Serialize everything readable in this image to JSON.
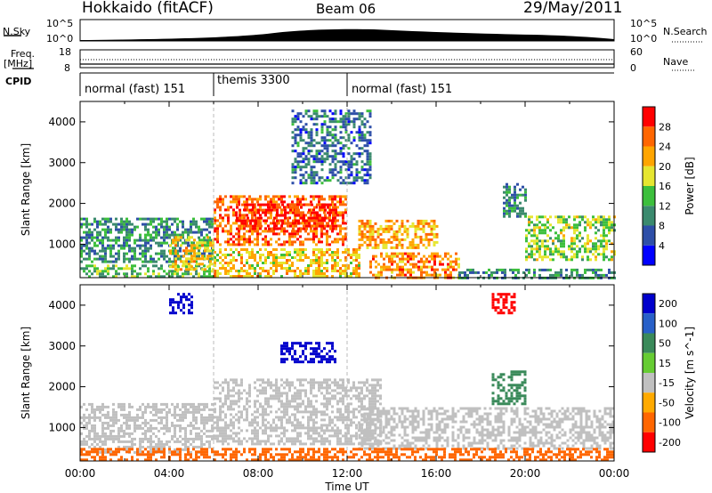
{
  "header": {
    "station": "Hokkaido (fitACF)",
    "beam": "Beam 06",
    "date": "29/May/2011"
  },
  "top_panel": {
    "left_label": "N.Sky",
    "right_label": "N.Search",
    "tick_high": "10^5",
    "tick_low": "10^0"
  },
  "freq_panel": {
    "left_label_1": "Freq.",
    "left_label_2": "[MHz]",
    "right_label": "Nave",
    "left_ticks": [
      "18",
      "8"
    ],
    "right_ticks": [
      "60",
      "0"
    ]
  },
  "cpid": {
    "label": "CPID",
    "segments": [
      {
        "name": "normal (fast) 151",
        "start_h": 0,
        "end_h": 6
      },
      {
        "name": "themis 3300",
        "start_h": 6,
        "end_h": 12
      },
      {
        "name": "normal (fast) 151",
        "start_h": 12,
        "end_h": 24
      }
    ]
  },
  "colors": {
    "power": [
      "#0000ff",
      "#2e4fa8",
      "#3b8a6e",
      "#3cbf3c",
      "#e6e630",
      "#ffa500",
      "#ff6600",
      "#ff0000"
    ],
    "velocity": [
      "#0000cc",
      "#2860c8",
      "#3a8a5a",
      "#66cc33",
      "#c0c0c0",
      "#ffaa00",
      "#ff6600",
      "#ff0000"
    ]
  },
  "chart_data": [
    {
      "type": "heatmap",
      "name": "power-panel",
      "xlabel": "",
      "ylabel": "Slant Range [km]",
      "xlim": [
        0,
        24
      ],
      "ylim": [
        180,
        4500
      ],
      "yticks": [
        "1000",
        "2000",
        "3000",
        "4000"
      ],
      "colorbar_label": "Power [dB]",
      "colorbar_ticks": [
        "4",
        "8",
        "12",
        "16",
        "20",
        "24",
        "28"
      ],
      "regions": [
        {
          "t0": 0.0,
          "t1": 6.0,
          "r0": 600,
          "r1": 1650,
          "v": 10
        },
        {
          "t0": 0.0,
          "t1": 6.0,
          "r0": 200,
          "r1": 500,
          "v": 14
        },
        {
          "t0": 4.0,
          "t1": 6.0,
          "r0": 400,
          "r1": 1200,
          "v": 20
        },
        {
          "t0": 6.0,
          "t1": 12.0,
          "r0": 1000,
          "r1": 2200,
          "v": 26
        },
        {
          "t0": 7.0,
          "t1": 11.5,
          "r0": 1400,
          "r1": 2000,
          "v": 29
        },
        {
          "t0": 6.0,
          "t1": 12.5,
          "r0": 200,
          "r1": 900,
          "v": 20
        },
        {
          "t0": 12.5,
          "t1": 16.0,
          "r0": 900,
          "r1": 1600,
          "v": 22
        },
        {
          "t0": 13.0,
          "t1": 17.0,
          "r0": 200,
          "r1": 800,
          "v": 24
        },
        {
          "t0": 19.0,
          "t1": 20.0,
          "r0": 1700,
          "r1": 2500,
          "v": 10
        },
        {
          "t0": 20.0,
          "t1": 24.0,
          "r0": 600,
          "r1": 1700,
          "v": 16
        },
        {
          "t0": 9.5,
          "t1": 13.0,
          "r0": 2500,
          "r1": 4300,
          "v": 8
        },
        {
          "t0": 17.0,
          "t1": 24.0,
          "r0": 180,
          "r1": 400,
          "v": 10
        }
      ]
    },
    {
      "type": "heatmap",
      "name": "velocity-panel",
      "xlabel": "Time UT",
      "ylabel": "Slant Range [km]",
      "xlim": [
        0,
        24
      ],
      "ylim": [
        180,
        4500
      ],
      "xticks": [
        "00:00",
        "04:00",
        "08:00",
        "12:00",
        "16:00",
        "20:00",
        "00:00"
      ],
      "yticks": [
        "1000",
        "2000",
        "3000",
        "4000"
      ],
      "colorbar_label": "Velocity [m s^-1]",
      "colorbar_ticks": [
        "200",
        "100",
        "50",
        "15",
        "-15",
        "-50",
        "-100",
        "-200"
      ],
      "regions": [
        {
          "t0": 6.0,
          "t1": 13.5,
          "r0": 600,
          "r1": 2200,
          "v": 0
        },
        {
          "t0": 9.0,
          "t1": 11.5,
          "r0": 2600,
          "r1": 3100,
          "v": 200
        },
        {
          "t0": 0.0,
          "t1": 6.0,
          "r0": 400,
          "r1": 1600,
          "v": 0
        },
        {
          "t0": 12.5,
          "t1": 24.0,
          "r0": 500,
          "r1": 1500,
          "v": 0
        },
        {
          "t0": 0.0,
          "t1": 24.0,
          "r0": 180,
          "r1": 500,
          "v": -60
        },
        {
          "t0": 18.5,
          "t1": 20.0,
          "r0": 1600,
          "r1": 2400,
          "v": 50
        },
        {
          "t0": 4.0,
          "t1": 5.0,
          "r0": 3800,
          "r1": 4300,
          "v": 200
        },
        {
          "t0": 18.5,
          "t1": 19.5,
          "r0": 3800,
          "r1": 4300,
          "v": -200
        }
      ]
    }
  ]
}
